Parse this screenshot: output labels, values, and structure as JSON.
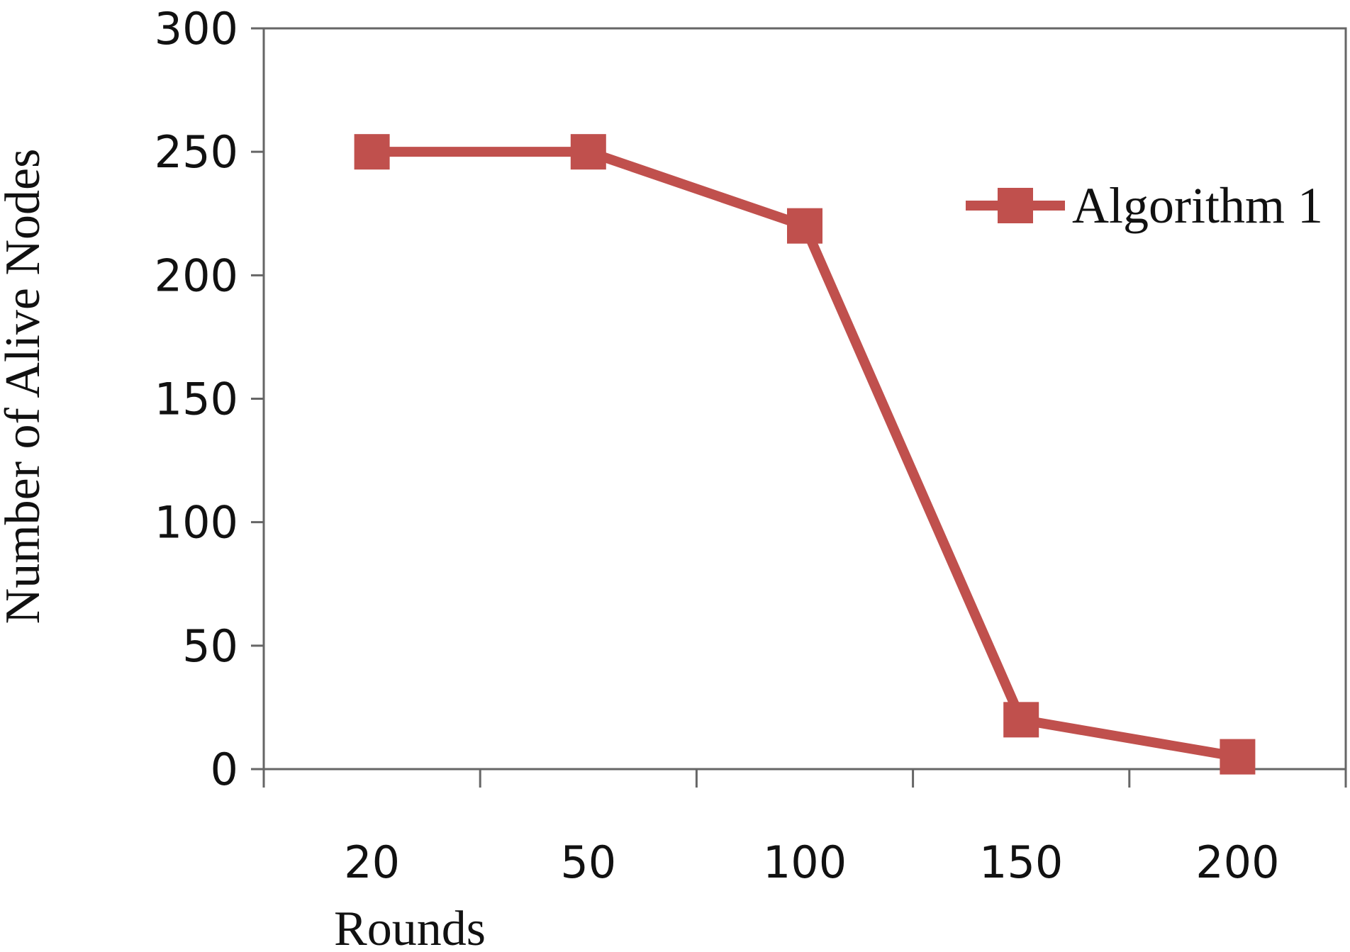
{
  "chart_data": {
    "type": "line",
    "categories": [
      "20",
      "50",
      "100",
      "150",
      "200"
    ],
    "series": [
      {
        "name": "Algorithm 1",
        "values": [
          250,
          250,
          220,
          20,
          5
        ],
        "color": "#c0504d"
      }
    ],
    "xlabel": "Rounds",
    "ylabel": "Number of Alive Nodes",
    "ylim": [
      0,
      300
    ],
    "yticks": [
      0,
      50,
      100,
      150,
      200,
      250,
      300
    ],
    "grid": false,
    "legend_position": "top-right"
  }
}
